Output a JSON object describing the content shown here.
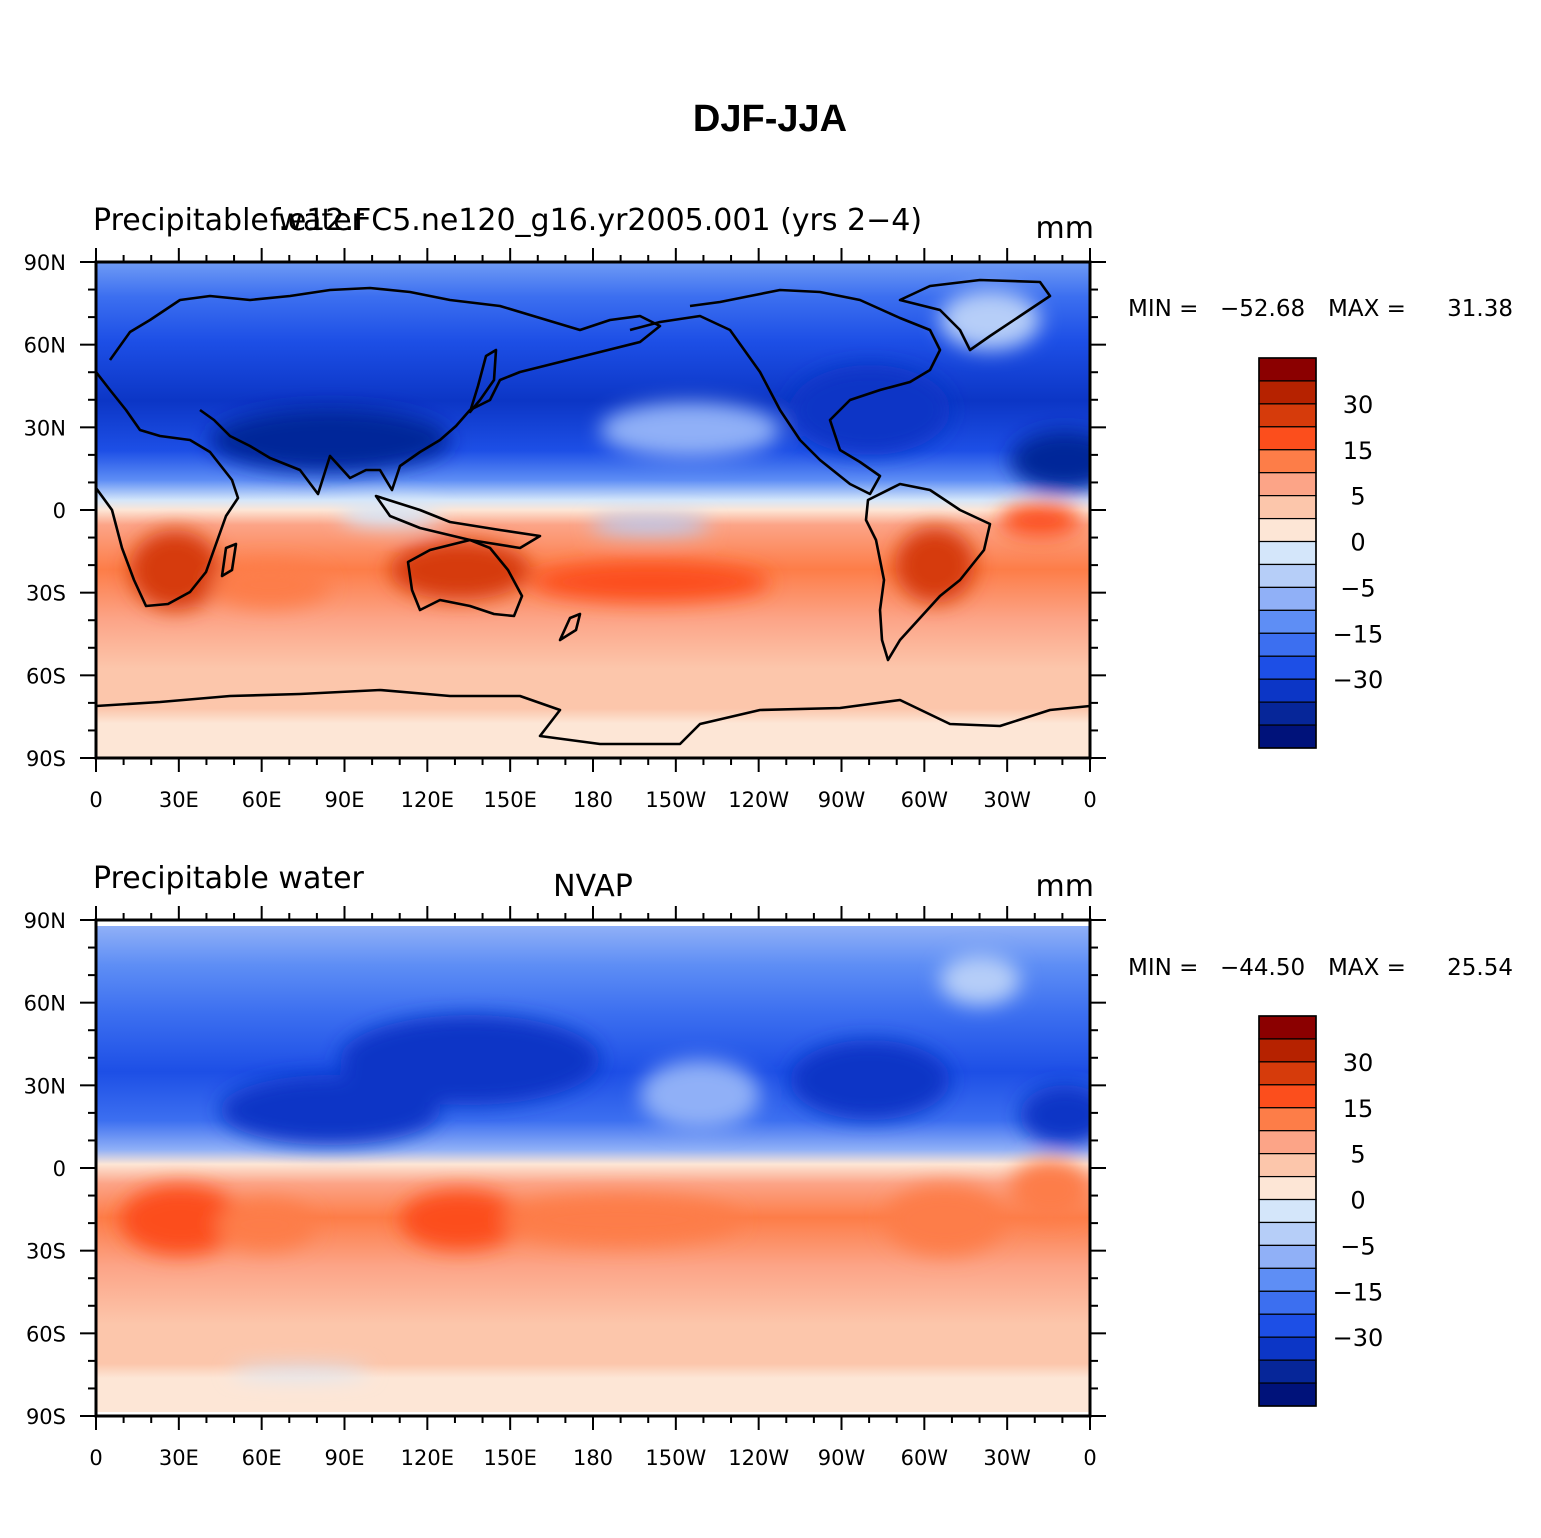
{
  "figure_title": "DJF-JJA",
  "levels": [
    "30",
    "15",
    "5",
    "0",
    "−5",
    "−15",
    "−30"
  ],
  "colorbar_colors": [
    "#8b0000",
    "#b62200",
    "#d63b0b",
    "#fc4e1c",
    "#fd7d48",
    "#fca487",
    "#fcc6ab",
    "#fde6d6",
    "#d4e6fa",
    "#b6cef8",
    "#90b0f7",
    "#5e8ef5",
    "#3c6ff0",
    "#1d4fe6",
    "#0c36c6",
    "#062699",
    "#00127a"
  ],
  "lon_labels": [
    "0",
    "30E",
    "60E",
    "90E",
    "120E",
    "150E",
    "180",
    "150W",
    "120W",
    "90W",
    "60W",
    "30W",
    "0"
  ],
  "lat_labels": [
    "90N",
    "60N",
    "30N",
    "0",
    "30S",
    "60S",
    "90S"
  ],
  "panels": [
    {
      "left_title": "Precipitable water",
      "center_title": "f.e12.FC5.ne120_g16.yr2005.001 (yrs 2−4)",
      "units": "mm",
      "min_label": "MIN =",
      "min_value": "−52.68",
      "max_label": "MAX =",
      "max_value": "31.38"
    },
    {
      "left_title": "Precipitable water",
      "center_title": "NVAP",
      "units": "mm",
      "min_label": "MIN =",
      "min_value": "−44.50",
      "max_label": "MAX =",
      "max_value": "25.54"
    }
  ]
}
